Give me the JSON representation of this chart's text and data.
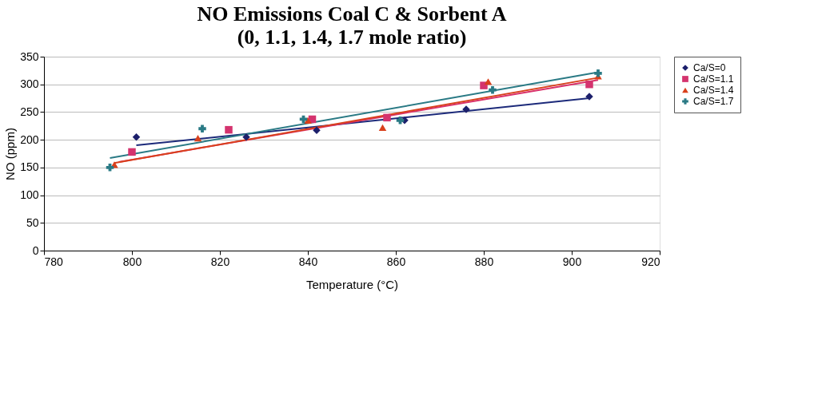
{
  "chart_data": {
    "type": "scatter",
    "title": "NO Emissions  Coal C & Sorbent A",
    "subtitle": "(0, 1.1, 1.4, 1.7 mole ratio)",
    "xlabel": "Temperature (°C)",
    "ylabel": "NO (ppm)",
    "xlim": [
      780,
      920
    ],
    "xticks": [
      780,
      800,
      820,
      840,
      860,
      880,
      900,
      920
    ],
    "ylim": [
      0,
      350
    ],
    "yticks": [
      0,
      50,
      100,
      150,
      200,
      250,
      300,
      350
    ],
    "grid": "y",
    "legend": "right",
    "series": [
      {
        "name": "Ca/S=0",
        "color": "#1c1f6b",
        "marker": "diamond",
        "x": [
          801,
          826,
          842,
          862,
          876,
          904
        ],
        "values": [
          205,
          205,
          217,
          235,
          255,
          278
        ]
      },
      {
        "name": "Ca/S=1.1",
        "color": "#d4336e",
        "marker": "square",
        "x": [
          800,
          822,
          841,
          858,
          880,
          904
        ],
        "values": [
          178,
          218,
          237,
          240,
          298,
          300
        ]
      },
      {
        "name": "Ca/S=1.4",
        "color": "#d9401c",
        "marker": "triangle",
        "x": [
          796,
          815,
          840,
          857,
          881,
          906
        ],
        "values": [
          155,
          203,
          235,
          222,
          305,
          315
        ]
      },
      {
        "name": "Ca/S=1.7",
        "color": "#2a7a85",
        "marker": "cross",
        "x": [
          795,
          816,
          839,
          861,
          882,
          906
        ],
        "values": [
          150,
          220,
          237,
          235,
          290,
          320
        ]
      },
      {
        "type": "line",
        "color": "#1c2a7a",
        "x": [
          801,
          904
        ],
        "values": [
          190,
          275
        ]
      },
      {
        "type": "line",
        "color": "#d9306a",
        "x": [
          797,
          906
        ],
        "values": [
          160,
          308
        ]
      },
      {
        "type": "line",
        "color": "#d9401c",
        "x": [
          796,
          906
        ],
        "values": [
          158,
          312
        ]
      },
      {
        "type": "line",
        "color": "#2a7a85",
        "x": [
          795,
          906
        ],
        "values": [
          167,
          322
        ]
      }
    ]
  }
}
